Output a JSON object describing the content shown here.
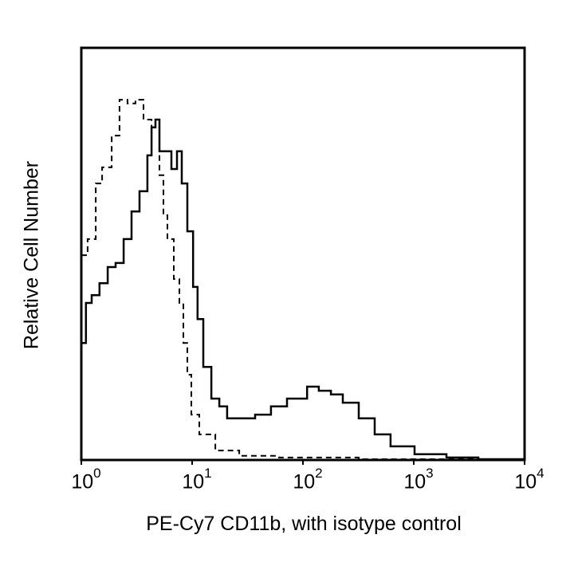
{
  "chart_data": {
    "type": "line",
    "title": "",
    "xlabel": "PE-Cy7 CD11b, with isotype control",
    "ylabel": "Relative Cell Number",
    "x_scale": "log",
    "xlim": [
      1,
      10000
    ],
    "ylim": [
      0,
      100
    ],
    "x_ticks": [
      {
        "base": "10",
        "exp": "0"
      },
      {
        "base": "10",
        "exp": "1"
      },
      {
        "base": "10",
        "exp": "2"
      },
      {
        "base": "10",
        "exp": "3"
      },
      {
        "base": "10",
        "exp": "4"
      }
    ],
    "grid": false,
    "legend": "none",
    "series": [
      {
        "style": "solid",
        "color": "#000000",
        "x": [
          1,
          1.1,
          1.24,
          1.46,
          1.73,
          2.04,
          2.41,
          2.84,
          3.35,
          3.95,
          4.3,
          4.67,
          5.07,
          5.98,
          6.5,
          7.3,
          8.06,
          9.05,
          10.2,
          11.2,
          12.6,
          14.9,
          17.6,
          20.7,
          26.6,
          37,
          51.5,
          71.8,
          109,
          139,
          179,
          229,
          319,
          444,
          618,
          1016,
          1972,
          3828,
          10000
        ],
        "y": [
          28.4,
          38.1,
          40.0,
          42.9,
          46.8,
          47.8,
          53.6,
          60.3,
          65.2,
          73.9,
          80.7,
          82.6,
          74.9,
          74.9,
          70.6,
          74.9,
          67.1,
          55.5,
          42.0,
          34.2,
          22.6,
          14.9,
          13.0,
          10.1,
          10.1,
          11.0,
          13.0,
          14.9,
          17.8,
          16.8,
          15.9,
          13.9,
          10.1,
          6.2,
          3.3,
          1.4,
          0.6,
          0.2,
          0
        ]
      },
      {
        "style": "dashed",
        "color": "#000000",
        "x": [
          1,
          1.14,
          1.35,
          1.54,
          1.88,
          2.21,
          2.61,
          3.08,
          3.64,
          4.3,
          5.07,
          5.51,
          5.98,
          6.83,
          7.67,
          8.33,
          9.05,
          9.84,
          11.6,
          16.2,
          26.6,
          60.8,
          319,
          3828
        ],
        "y": [
          49.7,
          53.6,
          67.1,
          71.0,
          78.7,
          87.4,
          86.5,
          87.4,
          82.6,
          80.7,
          69.1,
          59.4,
          53.6,
          43.9,
          38.1,
          28.4,
          20.7,
          11.0,
          6.2,
          2.3,
          1.0,
          0.6,
          0.2,
          0
        ]
      }
    ]
  }
}
